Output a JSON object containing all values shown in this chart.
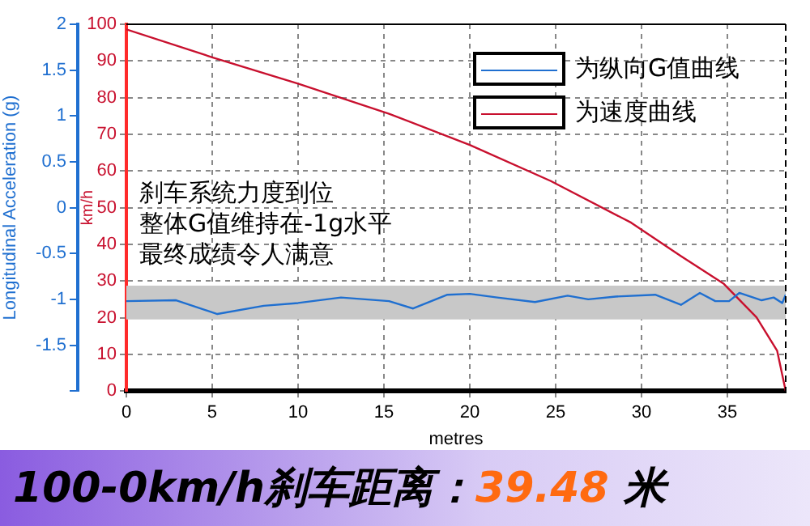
{
  "chart_data": {
    "type": "line",
    "title": "100-0km/h刹车距离：39.48 米",
    "xlabel": "metres",
    "ylabel": "km/h",
    "y2label": "Longitudinal Acceleration (g)",
    "xlim": [
      0,
      38.4
    ],
    "xticks": [
      0,
      5,
      10,
      15,
      20,
      25,
      30,
      35
    ],
    "ylim": [
      0,
      100
    ],
    "yticks": [
      0,
      10,
      20,
      30,
      40,
      50,
      60,
      70,
      80,
      90,
      100
    ],
    "y2lim": [
      -2,
      2
    ],
    "y2ticks": [
      {
        "value": -2,
        "label": null
      },
      -1.5,
      -1,
      -0.5,
      0,
      0.5,
      1,
      1.5,
      2
    ],
    "series": [
      {
        "name": "为纵向G值曲线",
        "color": "#1f6fd0",
        "axis": "y2",
        "x": [
          0,
          2.9,
          5.3,
          8,
          10,
          12.5,
          15.3,
          16.7,
          18.7,
          20,
          21.6,
          23.8,
          25.7,
          26.9,
          28.5,
          30.8,
          32.3,
          33.4,
          34.3,
          35.1,
          35.7,
          37,
          37.7,
          38.2,
          38.4
        ],
        "values": [
          -1.02,
          -1.01,
          -1.16,
          -1.07,
          -1.04,
          -0.98,
          -1.02,
          -1.1,
          -0.95,
          -0.94,
          -0.98,
          -1.03,
          -0.96,
          -1,
          -0.97,
          -0.95,
          -1.06,
          -0.93,
          -1.02,
          -1.02,
          -0.93,
          -1.01,
          -0.98,
          -1.04,
          -0.95
        ]
      },
      {
        "name": "为速度曲线",
        "color": "#c8102e",
        "axis": "y",
        "x": [
          0,
          5,
          10,
          15.3,
          20,
          24.7,
          29.4,
          32.3,
          34.8,
          36.7,
          37.9,
          38.4
        ],
        "values": [
          98.6,
          91,
          83.8,
          75.6,
          67.1,
          57.3,
          45.9,
          36.8,
          29.2,
          20.1,
          11,
          0
        ]
      }
    ],
    "bands": [
      {
        "axis": "y2",
        "from": -1.22,
        "to": -0.85,
        "color": "#c8c8c8"
      }
    ],
    "annotations": [
      "刹车系统力度到位",
      "整体G值维持在-1g水平",
      "最终成绩令人满意"
    ],
    "grid": true,
    "legend": "top right",
    "marker": "none",
    "line_style": "solid"
  }
}
